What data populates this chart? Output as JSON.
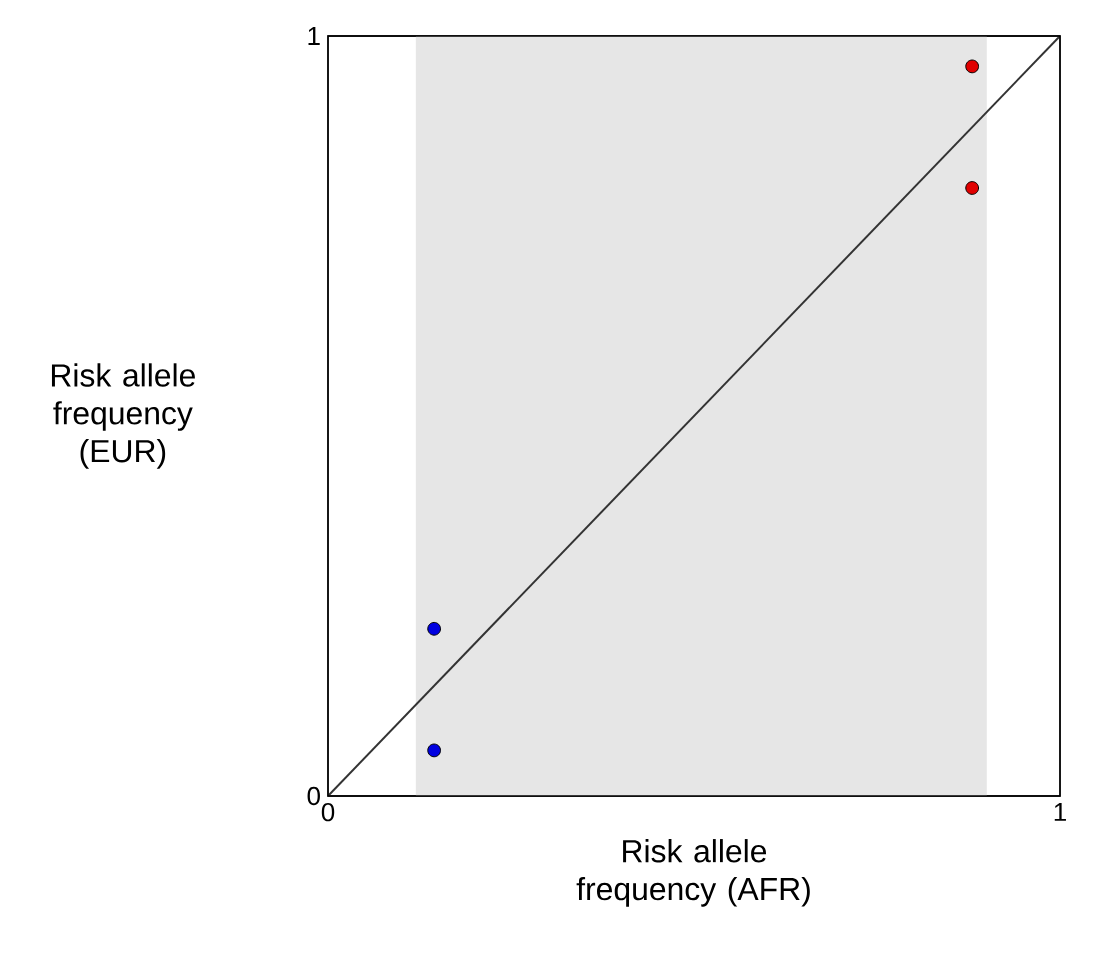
{
  "chart_data": {
    "type": "scatter",
    "xlabel": "Risk allele frequency (AFR)",
    "ylabel": "Risk allele frequency (EUR)",
    "xlim": [
      0,
      1
    ],
    "ylim": [
      0,
      1
    ],
    "xticks": [
      0,
      1
    ],
    "yticks": [
      0,
      1
    ],
    "marker": "circle",
    "series": [
      {
        "x": [
          0.88,
          0.88
        ],
        "values": [
          0.96,
          0.8
        ],
        "color": "#e00000"
      },
      {
        "x": [
          0.145,
          0.145
        ],
        "values": [
          0.22,
          0.06
        ],
        "color": "#0000e0"
      },
      {
        "type": "line",
        "x": [
          0,
          1
        ],
        "values": [
          0,
          1
        ],
        "color": "#333333",
        "line_style": "solid",
        "marker": "none"
      }
    ],
    "bands": [
      {
        "axis": "x",
        "from": 0.12,
        "to": 0.9,
        "color": "#e6e6e6"
      }
    ]
  }
}
